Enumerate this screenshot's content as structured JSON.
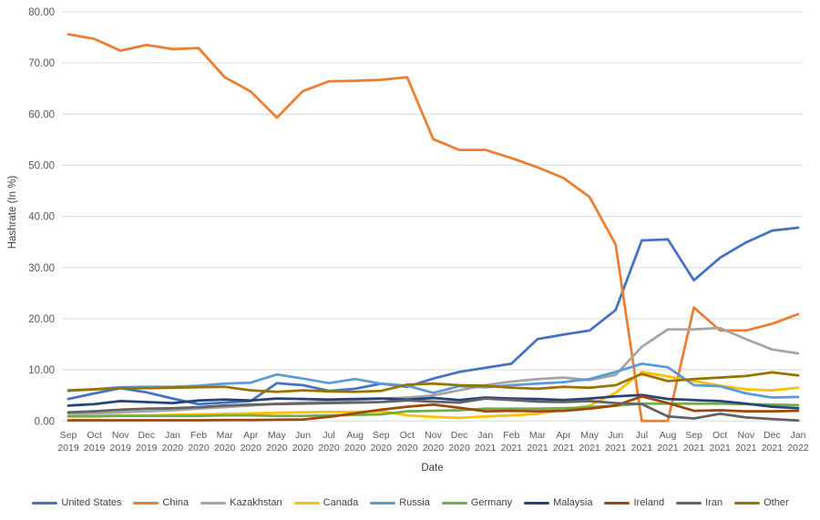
{
  "chart_data": {
    "type": "line",
    "title": "",
    "xlabel": "Date",
    "ylabel": "Hashrate (In %)",
    "ylim": [
      0,
      80
    ],
    "y_ticks": [
      "0.00",
      "10.00",
      "20.00",
      "30.00",
      "40.00",
      "50.00",
      "60.00",
      "70.00",
      "80.00"
    ],
    "grid": "horizontal",
    "legend_position": "bottom",
    "x_labels": [
      {
        "month": "Sep",
        "year": "2019"
      },
      {
        "month": "Oct",
        "year": "2019"
      },
      {
        "month": "Nov",
        "year": "2019"
      },
      {
        "month": "Dec",
        "year": "2019"
      },
      {
        "month": "Jan",
        "year": "2020"
      },
      {
        "month": "Feb",
        "year": "2020"
      },
      {
        "month": "Mar",
        "year": "2020"
      },
      {
        "month": "Apr",
        "year": "2020"
      },
      {
        "month": "May",
        "year": "2020"
      },
      {
        "month": "Jun",
        "year": "2020"
      },
      {
        "month": "Jul",
        "year": "2020"
      },
      {
        "month": "Aug",
        "year": "2020"
      },
      {
        "month": "Sep",
        "year": "2020"
      },
      {
        "month": "Oct",
        "year": "2020"
      },
      {
        "month": "Nov",
        "year": "2020"
      },
      {
        "month": "Dec",
        "year": "2020"
      },
      {
        "month": "Jan",
        "year": "2021"
      },
      {
        "month": "Feb",
        "year": "2021"
      },
      {
        "month": "Mar",
        "year": "2021"
      },
      {
        "month": "Apr",
        "year": "2021"
      },
      {
        "month": "May",
        "year": "2021"
      },
      {
        "month": "Jun",
        "year": "2021"
      },
      {
        "month": "Jul",
        "year": "2021"
      },
      {
        "month": "Aug",
        "year": "2021"
      },
      {
        "month": "Sep",
        "year": "2021"
      },
      {
        "month": "Oct",
        "year": "2021"
      },
      {
        "month": "Nov",
        "year": "2021"
      },
      {
        "month": "Dec",
        "year": "2021"
      },
      {
        "month": "Jan",
        "year": "2022"
      }
    ],
    "series": [
      {
        "name": "United States",
        "color": "#4472C4",
        "values": [
          4.3,
          5.4,
          6.4,
          5.6,
          4.4,
          3.3,
          3.6,
          3.9,
          7.4,
          7.0,
          5.9,
          6.3,
          7.3,
          6.7,
          8.3,
          9.6,
          10.4,
          11.2,
          16.0,
          16.9,
          17.7,
          21.7,
          35.3,
          35.5,
          27.5,
          31.9,
          34.9,
          37.2,
          37.8
        ]
      },
      {
        "name": "China",
        "color": "#ED7D31",
        "values": [
          75.6,
          74.7,
          72.4,
          73.5,
          72.7,
          72.9,
          67.2,
          64.4,
          59.3,
          64.5,
          66.4,
          66.5,
          66.7,
          67.2,
          55.1,
          53.0,
          53.0,
          51.4,
          49.6,
          47.5,
          43.8,
          34.5,
          0.0,
          0.0,
          22.2,
          17.7,
          17.7,
          19.0,
          20.9
        ]
      },
      {
        "name": "Kazakhstan",
        "color": "#A5A5A5",
        "values": [
          1.4,
          1.5,
          1.7,
          1.9,
          2.1,
          2.4,
          2.7,
          3.0,
          3.4,
          3.6,
          3.8,
          4.1,
          4.4,
          4.6,
          5.0,
          6.0,
          7.0,
          7.7,
          8.2,
          8.5,
          8.0,
          9.0,
          14.5,
          17.9,
          17.9,
          18.2,
          16.0,
          14.0,
          13.2
        ]
      },
      {
        "name": "Canada",
        "color": "#FFC000",
        "values": [
          0.9,
          1.0,
          1.1,
          1.1,
          1.2,
          1.3,
          1.4,
          1.5,
          1.6,
          1.7,
          1.8,
          1.8,
          1.9,
          1.1,
          0.8,
          0.6,
          0.9,
          1.1,
          1.4,
          2.2,
          3.0,
          5.5,
          9.6,
          8.7,
          7.8,
          6.9,
          6.2,
          6.0,
          6.5
        ]
      },
      {
        "name": "Russia",
        "color": "#5B9BD5",
        "values": [
          5.9,
          6.2,
          6.6,
          6.7,
          6.7,
          6.9,
          7.3,
          7.5,
          9.1,
          8.3,
          7.4,
          8.2,
          7.3,
          6.9,
          5.5,
          6.8,
          6.6,
          7.0,
          7.3,
          7.6,
          8.2,
          9.6,
          11.2,
          10.5,
          7.0,
          6.8,
          5.4,
          4.6,
          4.7
        ]
      },
      {
        "name": "Germany",
        "color": "#70AD47",
        "values": [
          0.9,
          0.9,
          1.0,
          1.0,
          1.0,
          1.0,
          1.1,
          1.1,
          1.0,
          1.0,
          1.1,
          1.2,
          1.3,
          1.9,
          2.0,
          2.1,
          2.4,
          2.4,
          2.4,
          2.5,
          2.7,
          3.0,
          3.4,
          3.4,
          3.4,
          3.4,
          3.3,
          3.2,
          3.1
        ]
      },
      {
        "name": "Malaysia",
        "color": "#264478",
        "values": [
          3.0,
          3.3,
          3.9,
          3.7,
          3.5,
          4.0,
          4.2,
          4.0,
          4.4,
          4.3,
          4.2,
          4.3,
          4.4,
          4.2,
          4.5,
          4.1,
          4.6,
          4.4,
          4.3,
          4.1,
          4.4,
          4.8,
          5.1,
          4.3,
          4.1,
          3.9,
          3.4,
          2.8,
          2.5
        ]
      },
      {
        "name": "Ireland",
        "color": "#9E480E",
        "values": [
          0.15,
          0.15,
          0.15,
          0.15,
          0.15,
          0.15,
          0.2,
          0.2,
          0.25,
          0.3,
          0.8,
          1.5,
          2.2,
          2.8,
          3.2,
          2.6,
          1.9,
          2.0,
          1.9,
          2.0,
          2.4,
          3.0,
          4.8,
          3.5,
          2.0,
          2.1,
          1.9,
          1.9,
          2.0
        ]
      },
      {
        "name": "Iran",
        "color": "#636363",
        "values": [
          1.7,
          1.9,
          2.2,
          2.4,
          2.5,
          2.7,
          3.0,
          3.2,
          3.3,
          3.4,
          3.5,
          3.6,
          3.7,
          4.0,
          3.8,
          3.6,
          4.4,
          4.1,
          3.8,
          3.7,
          3.9,
          3.5,
          3.3,
          0.9,
          0.5,
          1.4,
          0.7,
          0.4,
          0.1
        ]
      },
      {
        "name": "Other",
        "color": "#997300",
        "values": [
          6.0,
          6.2,
          6.4,
          6.4,
          6.5,
          6.6,
          6.7,
          6.0,
          5.7,
          6.0,
          5.8,
          5.7,
          5.9,
          7.1,
          7.3,
          7.0,
          6.9,
          6.5,
          6.3,
          6.7,
          6.5,
          7.0,
          9.2,
          7.8,
          8.2,
          8.5,
          8.8,
          9.5,
          8.9
        ]
      }
    ],
    "style": {
      "gridline_color": "#D9D9D9",
      "tick_label_color": "#595959",
      "axis_title_color": "#404040",
      "background": "#FFFFFF",
      "line_width": 2.75
    }
  }
}
